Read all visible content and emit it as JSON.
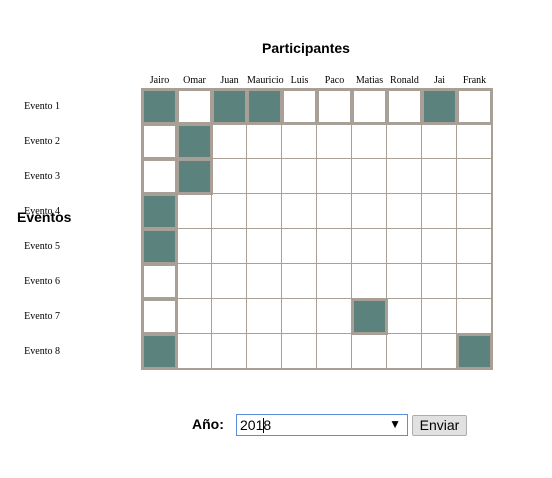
{
  "header": {
    "title": "Participantes",
    "side_title": "Eventos"
  },
  "participants": [
    "Jairo",
    "Omar",
    "Juan",
    "Mauricio",
    "Luis",
    "Paco",
    "Matias",
    "Ronald",
    "Jai",
    "Frank"
  ],
  "events": [
    "Evento 1",
    "Evento 2",
    "Evento 3",
    "Evento 4",
    "Evento 5",
    "Evento 6",
    "Evento 7",
    "Evento 8"
  ],
  "matrix": [
    [
      1,
      0,
      1,
      1,
      0,
      0,
      0,
      0,
      1,
      0
    ],
    [
      0,
      1,
      0,
      0,
      0,
      0,
      0,
      0,
      0,
      0
    ],
    [
      0,
      1,
      0,
      0,
      0,
      0,
      0,
      0,
      0,
      0
    ],
    [
      1,
      0,
      0,
      0,
      0,
      0,
      0,
      0,
      0,
      0
    ],
    [
      1,
      0,
      0,
      0,
      0,
      0,
      0,
      0,
      0,
      0
    ],
    [
      0,
      0,
      0,
      0,
      0,
      0,
      0,
      0,
      0,
      0
    ],
    [
      0,
      0,
      0,
      0,
      0,
      0,
      1,
      0,
      0,
      0
    ],
    [
      1,
      0,
      0,
      0,
      0,
      0,
      0,
      0,
      0,
      1
    ]
  ],
  "thick_cells": [
    [
      0,
      0
    ],
    [
      0,
      1
    ],
    [
      0,
      2
    ],
    [
      0,
      3
    ],
    [
      0,
      4
    ],
    [
      0,
      5
    ],
    [
      0,
      6
    ],
    [
      0,
      7
    ],
    [
      0,
      8
    ],
    [
      0,
      9
    ],
    [
      1,
      0
    ],
    [
      1,
      1
    ],
    [
      2,
      0
    ],
    [
      2,
      1
    ],
    [
      3,
      0
    ],
    [
      4,
      0
    ],
    [
      5,
      0
    ],
    [
      6,
      0
    ],
    [
      6,
      6
    ],
    [
      7,
      0
    ],
    [
      7,
      9
    ]
  ],
  "form": {
    "year_label": "Año:",
    "year_value": "2018",
    "submit_label": "Enviar",
    "dropdown_arrow": "▼"
  },
  "colors": {
    "filled": "#5b827d",
    "grid": "#a89f96",
    "empty": "#ffffff"
  }
}
